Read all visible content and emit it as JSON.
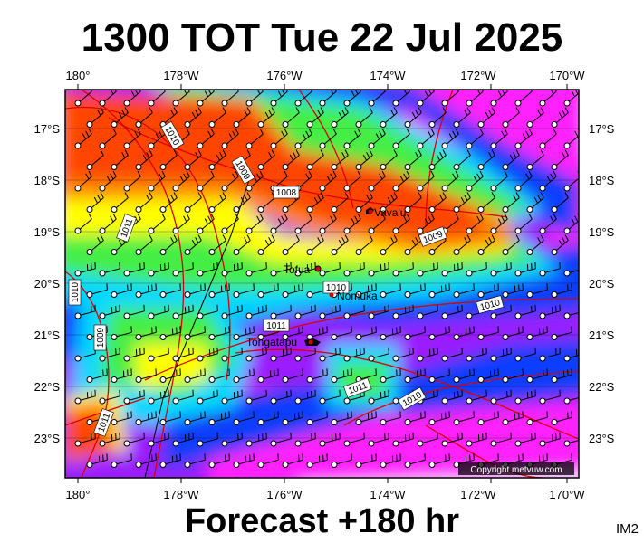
{
  "title": "1300 TOT Tue 22 Jul 2025",
  "footer": "Forecast +180 hr",
  "image_tag": "IM2",
  "copyright": "Copyright metvuw.com",
  "lon_ticks": [
    "180°",
    "178°W",
    "176°W",
    "174°W",
    "172°W",
    "170°W"
  ],
  "lat_ticks": [
    "17°S",
    "18°S",
    "19°S",
    "20°S",
    "21°S",
    "22°S",
    "23°S"
  ],
  "places": [
    {
      "name": "Vava'u",
      "lon": -174.0,
      "lat": -18.65
    },
    {
      "name": "Tofua",
      "lon": -175.07,
      "lat": -19.75
    },
    {
      "name": "Nomuka",
      "lon": -174.8,
      "lat": -20.25
    },
    {
      "name": "Tongatapu",
      "lon": -175.2,
      "lat": -21.13
    }
  ],
  "isobar_labels": [
    "1010",
    "1009",
    "1008",
    "1011",
    "1009",
    "1010",
    "1009",
    "1011",
    "1010",
    "1010",
    "1011",
    "1010",
    "1011"
  ],
  "colors": {
    "red": "#ff4400",
    "orange": "#ff8c00",
    "yellow": "#ffff00",
    "green": "#44ee44",
    "cyan": "#00d8ff",
    "blue": "#0a3cff",
    "purple": "#9a1cff",
    "magenta": "#ff22ff",
    "lavender": "#e6e6f8",
    "isobar": "#dd0000",
    "land": "#000000"
  }
}
